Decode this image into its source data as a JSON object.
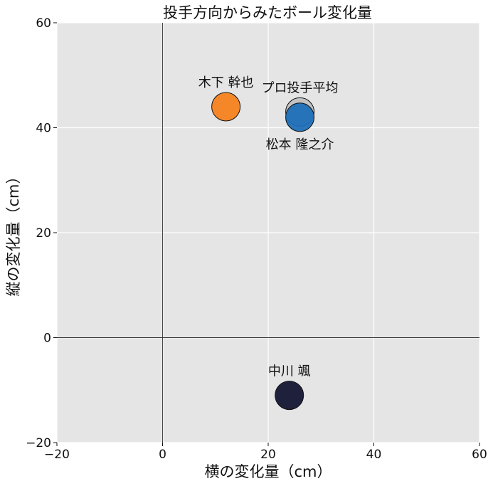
{
  "chart_data": {
    "type": "scatter",
    "title": "投手方向からみたボール変化量",
    "xlabel": "横の変化量（cm）",
    "ylabel": "縦の変化量（cm）",
    "xlim": [
      -20,
      60
    ],
    "ylim": [
      -20,
      60
    ],
    "xticks": [
      -20,
      0,
      20,
      40,
      60
    ],
    "yticks": [
      -20,
      0,
      20,
      40,
      60
    ],
    "xtick_labels": [
      "−20",
      "0",
      "20",
      "40",
      "60"
    ],
    "ytick_labels": [
      "−20",
      "0",
      "20",
      "40",
      "60"
    ],
    "grid": true,
    "plot_background": "#e5e5e5",
    "grid_color": "#ffffff",
    "zero_lines": true,
    "points": [
      {
        "label": "プロ投手平均",
        "x": 26,
        "y": 43,
        "color": "#c0c0c0",
        "label_position": "above"
      },
      {
        "label": "木下 幹也",
        "x": 12,
        "y": 44,
        "color": "#f5821f",
        "label_position": "above"
      },
      {
        "label": "松本 隆之介",
        "x": 26,
        "y": 42,
        "color": "#1f6fb8",
        "label_position": "below"
      },
      {
        "label": "中川 颯",
        "x": 24,
        "y": -11,
        "color": "#141633",
        "label_position": "above"
      }
    ]
  }
}
